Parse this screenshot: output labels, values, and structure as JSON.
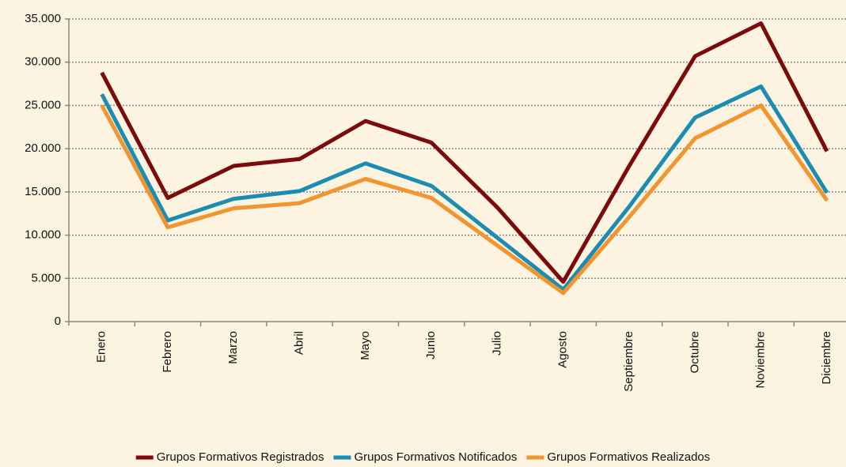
{
  "chart_data": {
    "type": "line",
    "categories": [
      "Enero",
      "Febrero",
      "Marzo",
      "Abril",
      "Mayo",
      "Junio",
      "Julio",
      "Agosto",
      "Septiembre",
      "Octubre",
      "Noviembre",
      "Diciembre"
    ],
    "series": [
      {
        "name": "Grupos Formativos Registrados",
        "color": "#7b0a0a",
        "values": [
          28800,
          14300,
          18000,
          18800,
          23200,
          20700,
          13200,
          4600,
          18000,
          30700,
          34500,
          19700
        ]
      },
      {
        "name": "Grupos Formativos Notificados",
        "color": "#1a8db0",
        "values": [
          26300,
          11700,
          14200,
          15100,
          18300,
          15700,
          9700,
          3700,
          13300,
          23600,
          27200,
          14900
        ]
      },
      {
        "name": "Grupos Formativos Realizados",
        "color": "#f0952f",
        "values": [
          25000,
          10900,
          13100,
          13700,
          16500,
          14300,
          8800,
          3300,
          12100,
          21200,
          25000,
          14000
        ]
      }
    ],
    "ylim": [
      0,
      35000
    ],
    "yticks": [
      0,
      {
        "value": 5000,
        "label": "5.000"
      },
      {
        "value": 10000,
        "label": "10.000"
      },
      {
        "value": 15000,
        "label": "15.000"
      },
      {
        "value": 20000,
        "label": "20.000"
      },
      {
        "value": 25000,
        "label": "25.000"
      },
      {
        "value": 30000,
        "label": "30.000"
      },
      {
        "value": 35000,
        "label": "35.000"
      }
    ],
    "grid": true,
    "legend": "bottom"
  }
}
